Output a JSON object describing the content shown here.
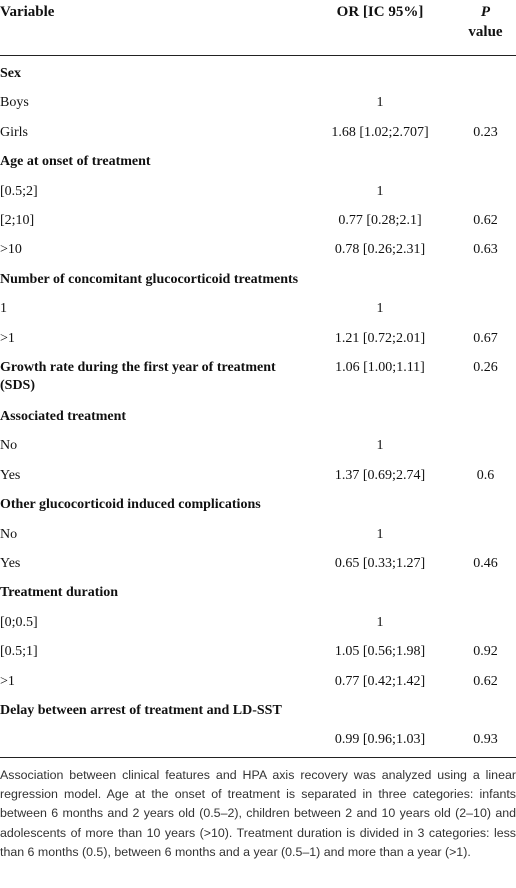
{
  "table": {
    "header": {
      "variable": "Variable",
      "or": "OR [IC 95%]",
      "p": "P",
      "p_rest": "value"
    },
    "rows": [
      {
        "label": "Sex",
        "section": true
      },
      {
        "label": "Boys",
        "or": "1"
      },
      {
        "label": "Girls",
        "or": "1.68 [1.02;2.707]",
        "p": "0.23"
      },
      {
        "label": "Age at onset of treatment",
        "section": true
      },
      {
        "label": "[0.5;2]",
        "or": "1"
      },
      {
        "label": "[2;10]",
        "or": "0.77 [0.28;2.1]",
        "p": "0.62"
      },
      {
        "label": ">10",
        "or": "0.78 [0.26;2.31]",
        "p": "0.63"
      },
      {
        "label": "Number of concomitant glucocorticoid treatments",
        "section": true
      },
      {
        "label": "1",
        "or": "1"
      },
      {
        "label": ">1",
        "or": "1.21 [0.72;2.01]",
        "p": "0.67"
      },
      {
        "label": "Growth rate during the first year of treatment (SDS)",
        "section": true,
        "or": "1.06 [1.00;1.11]",
        "p": "0.26"
      },
      {
        "label": "Associated treatment",
        "section": true
      },
      {
        "label": "No",
        "or": "1"
      },
      {
        "label": "Yes",
        "or": "1.37 [0.69;2.74]",
        "p": "0.6"
      },
      {
        "label": "Other glucocorticoid induced complications",
        "section": true
      },
      {
        "label": "No",
        "or": "1"
      },
      {
        "label": "Yes",
        "or": "0.65 [0.33;1.27]",
        "p": "0.46"
      },
      {
        "label": "Treatment duration",
        "section": true
      },
      {
        "label": "[0;0.5]",
        "or": "1"
      },
      {
        "label": "[0.5;1]",
        "or": "1.05 [0.56;1.98]",
        "p": "0.92"
      },
      {
        "label": ">1",
        "or": "0.77 [0.42;1.42]",
        "p": "0.62"
      },
      {
        "label": "Delay between arrest of treatment and LD-SST",
        "section": true
      },
      {
        "or": "0.99 [0.96;1.03]",
        "p": "0.93"
      }
    ]
  },
  "caption": "Association between clinical features and HPA axis recovery was analyzed using a linear regression model. Age at the onset of treatment is separated in three categories: infants between 6 months and 2 years old (0.5–2), children between 2 and 10 years old (2–10) and adolescents of more than 10 years (>10). Treatment duration is divided in 3 categories: less than 6 months (0.5), between 6 months and a year (0.5–1) and more than a year (>1)."
}
